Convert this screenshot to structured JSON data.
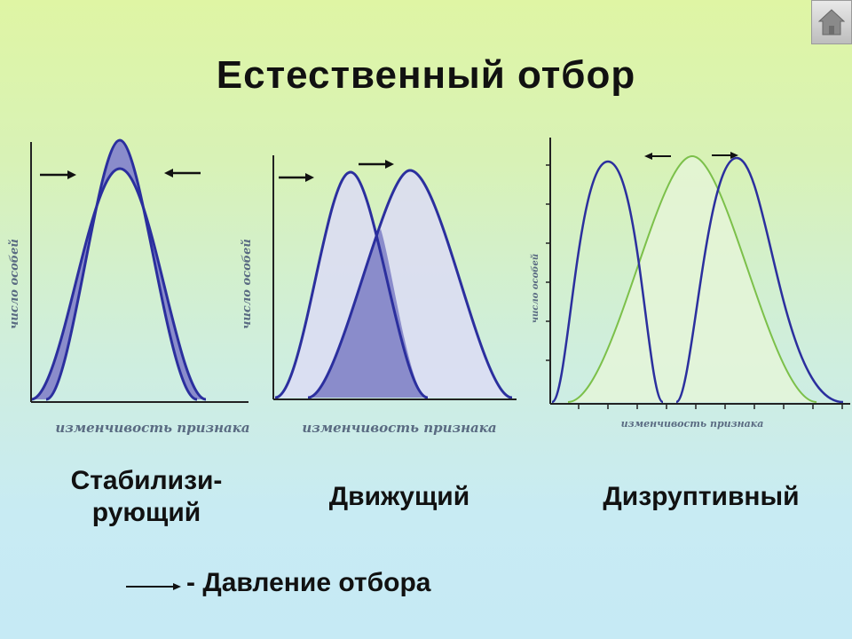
{
  "title": "Естественный отбор",
  "panels": [
    {
      "id": "stabilizing",
      "y_axis_label": "число особей",
      "x_axis_label": "изменчивость признака",
      "caption_line1": "Стабилизи-",
      "caption_line2": "рующий"
    },
    {
      "id": "directional",
      "y_axis_label": "число особей",
      "x_axis_label": "изменчивость признака",
      "caption": "Движущий"
    },
    {
      "id": "disruptive",
      "y_axis_label": "число особей",
      "x_axis_label": "изменчивость признака",
      "caption": "Дизруптивный"
    }
  ],
  "legend": {
    "symbol": "arrow-right-icon",
    "text": "- Давление отбора"
  },
  "colors": {
    "curve_blue": "#2b2f9e",
    "fill_dark": "#8a8ccb",
    "fill_light": "#dcdcf4",
    "curve_green": "#7cc04a",
    "axis": "#222222",
    "axis_label": "#5a6b82"
  }
}
